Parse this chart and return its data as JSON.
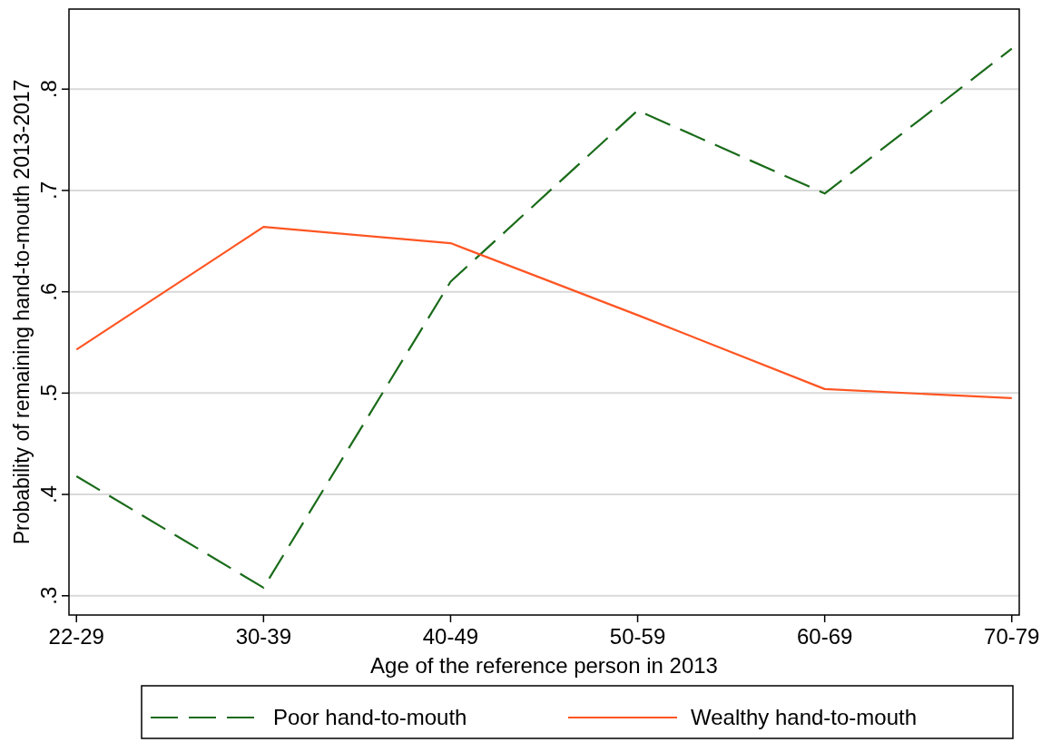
{
  "chart_data": {
    "type": "line",
    "xlabel": "Age of the reference person in 2013",
    "ylabel": "Probability of remaining hand-to-mouth 2013-2017",
    "categories": [
      "22-29",
      "30-39",
      "40-49",
      "50-59",
      "60-69",
      "70-79"
    ],
    "series": [
      {
        "name": "Poor hand-to-mouth",
        "color": "#1a6b1a",
        "line_style": "dashed",
        "values": [
          0.418,
          0.308,
          0.61,
          0.779,
          0.697,
          0.84
        ]
      },
      {
        "name": "Wealthy hand-to-mouth",
        "color": "#ff5522",
        "line_style": "solid",
        "values": [
          0.543,
          0.664,
          0.648,
          0.577,
          0.504,
          0.495
        ]
      }
    ],
    "ylim": [
      0.281,
      0.879
    ],
    "yticks": [
      {
        "value": 0.3,
        "label": ".3"
      },
      {
        "value": 0.4,
        "label": ".4"
      },
      {
        "value": 0.5,
        "label": ".5"
      },
      {
        "value": 0.6,
        "label": ".6"
      },
      {
        "value": 0.7,
        "label": ".7"
      },
      {
        "value": 0.8,
        "label": ".8"
      }
    ],
    "grid": "y",
    "legend": "bottom",
    "marker": "none"
  }
}
